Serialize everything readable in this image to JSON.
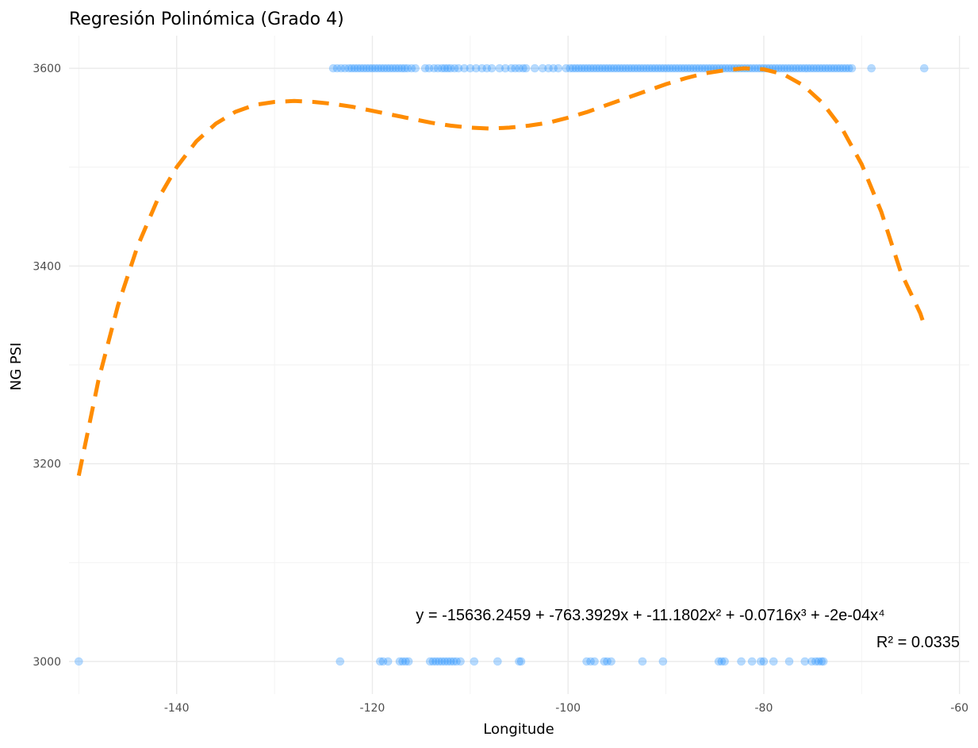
{
  "chart_data": {
    "type": "scatter",
    "title": "Regresión Polinómica (Grado 4)",
    "xlabel": "Longitude",
    "ylabel": "NG PSI",
    "xlim": [
      -151,
      -59
    ],
    "ylim": [
      2967,
      3633
    ],
    "x_ticks": [
      -140,
      -120,
      -100,
      -80,
      -60
    ],
    "y_ticks": [
      3000,
      3200,
      3400,
      3600
    ],
    "x_tick_labels": [
      "-140",
      "-120",
      "-100",
      "-80",
      "-60"
    ],
    "y_tick_labels": [
      "3000",
      "3200",
      "3400",
      "3600"
    ],
    "grid": true,
    "colors": {
      "points": "#1E90FF",
      "fit": "#FF8C00"
    },
    "series": [
      {
        "kind": "points",
        "y": 3600,
        "x": [
          -124.0,
          -123.6,
          -123.2,
          -122.8,
          -122.4,
          -122.1,
          -121.8,
          -121.5,
          -121.2,
          -120.9,
          -120.6,
          -120.3,
          -120.0,
          -119.7,
          -119.4,
          -119.1,
          -118.8,
          -118.5,
          -118.2,
          -117.9,
          -117.6,
          -117.3,
          -117.0,
          -116.7,
          -116.4,
          -116.0,
          -115.6,
          -114.6,
          -114.2,
          -113.7,
          -113.3,
          -112.9,
          -112.6,
          -112.3,
          -112.0,
          -111.6,
          -111.2,
          -110.6,
          -110.0,
          -109.4,
          -108.8,
          -108.3,
          -107.8,
          -107.0,
          -106.4,
          -105.8,
          -105.4,
          -105.0,
          -104.6,
          -104.3,
          -103.4,
          -102.6,
          -102.0,
          -101.5,
          -101.0,
          -100.2,
          -99.8,
          -99.5,
          -99.2,
          -98.9,
          -98.6,
          -98.3,
          -98.0,
          -97.7,
          -97.4,
          -97.1,
          -96.8,
          -96.5,
          -96.2,
          -95.9,
          -95.6,
          -95.3,
          -95.0,
          -94.7,
          -94.4,
          -94.1,
          -93.8,
          -93.5,
          -93.2,
          -92.9,
          -92.6,
          -92.3,
          -92.0,
          -91.7,
          -91.4,
          -91.1,
          -90.8,
          -90.5,
          -90.2,
          -89.9,
          -89.6,
          -89.3,
          -89.0,
          -88.7,
          -88.4,
          -88.1,
          -87.8,
          -87.5,
          -87.2,
          -86.9,
          -86.6,
          -86.3,
          -86.0,
          -85.7,
          -85.4,
          -85.1,
          -84.8,
          -84.5,
          -84.2,
          -83.9,
          -83.6,
          -83.3,
          -83.0,
          -82.7,
          -82.4,
          -82.1,
          -81.8,
          -81.5,
          -81.2,
          -80.9,
          -80.6,
          -80.3,
          -80.0,
          -79.7,
          -79.4,
          -79.1,
          -78.8,
          -78.5,
          -78.2,
          -77.9,
          -77.6,
          -77.3,
          -77.0,
          -76.7,
          -76.4,
          -76.1,
          -75.8,
          -75.5,
          -75.2,
          -74.9,
          -74.6,
          -74.3,
          -74.0,
          -73.7,
          -73.4,
          -73.1,
          -72.8,
          -72.5,
          -72.2,
          -71.9,
          -71.6,
          -71.3,
          -71.0,
          -69.0,
          -63.6
        ]
      },
      {
        "kind": "points",
        "y": 3000,
        "x": [
          -150.0,
          -123.3,
          -119.2,
          -118.9,
          -118.4,
          -117.2,
          -116.9,
          -116.6,
          -116.3,
          -114.1,
          -113.8,
          -113.5,
          -113.2,
          -112.9,
          -112.6,
          -112.3,
          -112.0,
          -111.7,
          -111.4,
          -111.0,
          -109.6,
          -107.2,
          -105.0,
          -104.8,
          -98.1,
          -97.7,
          -97.3,
          -96.3,
          -96.0,
          -95.6,
          -92.4,
          -90.3,
          -84.6,
          -84.3,
          -84.0,
          -82.3,
          -81.2,
          -80.3,
          -80.0,
          -79.0,
          -77.4,
          -75.8,
          -75.1,
          -74.7,
          -74.4,
          -74.1,
          -73.9
        ]
      },
      {
        "kind": "fit_line",
        "x": [
          -150,
          -148,
          -146,
          -144,
          -142,
          -140,
          -138,
          -136,
          -134,
          -132,
          -130,
          -128,
          -126,
          -124,
          -122,
          -120,
          -118,
          -116,
          -114,
          -112,
          -110,
          -108,
          -106,
          -104,
          -102,
          -100,
          -98,
          -96,
          -94,
          -92,
          -90,
          -88,
          -86,
          -84,
          -82,
          -80,
          -78,
          -76,
          -74,
          -72,
          -70,
          -68,
          -66,
          -64,
          -63.5
        ],
        "y": [
          3188,
          3284,
          3360,
          3420,
          3466,
          3500,
          3526,
          3544,
          3556,
          3563,
          3566,
          3567,
          3566,
          3564,
          3561,
          3557,
          3553,
          3549,
          3545,
          3542,
          3540,
          3539,
          3540,
          3542,
          3545,
          3550,
          3556,
          3563,
          3570,
          3577,
          3584,
          3590,
          3595,
          3598,
          3600,
          3599,
          3594,
          3583,
          3565,
          3539,
          3503,
          3455,
          3394,
          3352,
          3337
        ]
      }
    ],
    "annotations": [
      {
        "text": "y = -15636.2459 + -763.3929x + -11.1802x² + -0.0716x³ + -2e-04x⁴"
      },
      {
        "text": "R² = 0.0335"
      }
    ]
  }
}
